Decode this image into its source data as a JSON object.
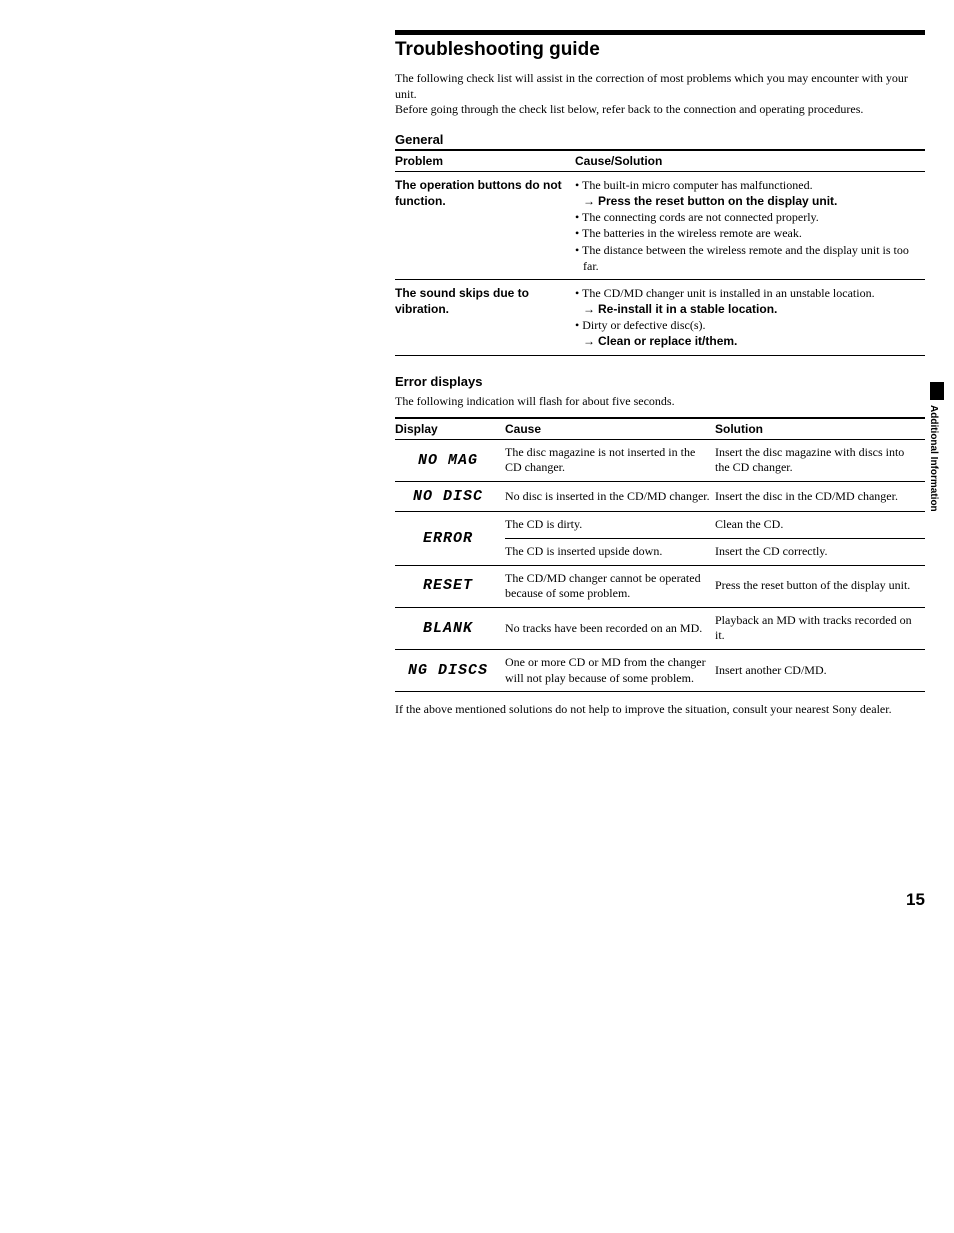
{
  "title": "Troubleshooting guide",
  "intro_line1": "The following check list will assist in the correction of most problems which you may encounter with your unit.",
  "intro_line2": "Before going through the check list below, refer back to the connection and operating procedures.",
  "general": {
    "heading": "General",
    "col_problem": "Problem",
    "col_cause": "Cause/Solution",
    "rows": [
      {
        "problem": "The operation buttons do not function.",
        "lines": [
          {
            "t": "bullet",
            "text": "• The built-in micro computer has malfunctioned."
          },
          {
            "t": "sub",
            "prefix": "→ ",
            "bold": "Press  the reset button on the display unit."
          },
          {
            "t": "bullet",
            "text": "• The connecting cords are not connected properly."
          },
          {
            "t": "bullet",
            "text": "• The batteries in the wireless remote are weak."
          },
          {
            "t": "bullet",
            "text": "• The distance between the wireless remote and the display unit is too far."
          }
        ]
      },
      {
        "problem": "The sound skips due to vibration.",
        "lines": [
          {
            "t": "bullet",
            "text": "• The CD/MD changer unit is installed in an unstable location."
          },
          {
            "t": "sub",
            "prefix": "→ ",
            "bold": "Re-install it in a stable location."
          },
          {
            "t": "bullet",
            "text": "• Dirty or defective disc(s)."
          },
          {
            "t": "sub",
            "prefix": "→ ",
            "bold": "Clean or replace it/them."
          }
        ]
      }
    ]
  },
  "errors": {
    "heading": "Error displays",
    "sub": "The following indication will flash for about five seconds.",
    "col_display": "Display",
    "col_cause": "Cause",
    "col_solution": "Solution",
    "rows": [
      {
        "display": "NO  MAG",
        "rowspan": 1,
        "cause": "The disc magazine is not inserted in the CD changer.",
        "solution": "Insert the disc magazine with discs into the CD changer."
      },
      {
        "display": "NO  DISC",
        "rowspan": 1,
        "cause": "No disc is inserted in the CD/MD changer.",
        "solution": "Insert the disc in the CD/MD changer."
      },
      {
        "display": "ERROR",
        "rowspan": 2,
        "cause": "The CD is dirty.",
        "solution": "Clean the CD."
      },
      {
        "display": "",
        "rowspan": 0,
        "cause": "The CD is inserted upside down.",
        "solution": "Insert the CD correctly."
      },
      {
        "display": "RESET",
        "rowspan": 1,
        "cause": "The CD/MD changer cannot be operated because of some problem.",
        "solution": "Press the reset button of the display unit."
      },
      {
        "display": "BLANK",
        "rowspan": 1,
        "cause": "No tracks have been recorded on an MD.",
        "solution": "Playback an MD with tracks recorded on it."
      },
      {
        "display": "NG  DISCS",
        "rowspan": 1,
        "cause": "One or more CD or MD from the changer will not play because of some problem.",
        "solution": "Insert another CD/MD."
      }
    ]
  },
  "footnote": "If the above mentioned solutions do not help to improve the situation, consult your nearest Sony dealer.",
  "side_label": "Additional Information",
  "page_number": "15"
}
